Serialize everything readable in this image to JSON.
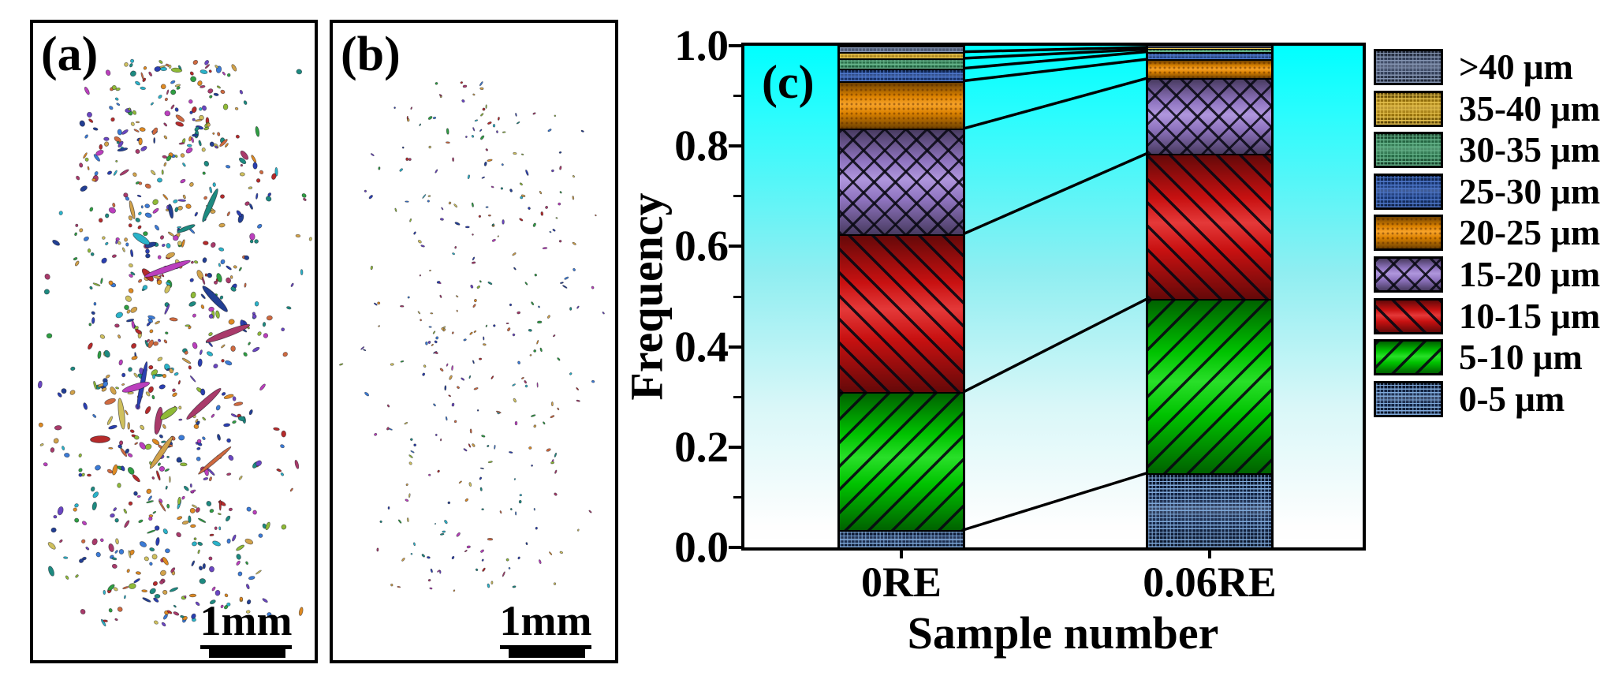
{
  "figure": {
    "panel_a": {
      "label": "(a)",
      "scalebar_label": "1mm"
    },
    "panel_b": {
      "label": "(b)",
      "scalebar_label": "1mm"
    },
    "panel_c": {
      "label": "(c)"
    },
    "particle_palette": [
      "#b52b2b",
      "#2a3fb0",
      "#2f9e42",
      "#2ab3c9",
      "#bb3fbd",
      "#de8a22",
      "#cfc05e",
      "#6a46c2",
      "#1d8a80",
      "#8fba37",
      "#cf6a3f",
      "#3b7bd6",
      "#223f93",
      "#a93a6a",
      "#d1a24a"
    ]
  },
  "chart_data": {
    "type": "bar",
    "subtype": "stacked-vertical",
    "title": "(c)",
    "xlabel": "Sample number",
    "ylabel": "Frequency",
    "ylim": [
      0.0,
      1.0
    ],
    "yticks": [
      0.0,
      0.2,
      0.4,
      0.6,
      0.8,
      1.0
    ],
    "minor_yticks": [
      0.1,
      0.3,
      0.5,
      0.7,
      0.9
    ],
    "grid": false,
    "legend_position": "right",
    "legend_order_top_to_bottom": [
      ">40 μm",
      "35-40 μm",
      "30-35 μm",
      "25-30 μm",
      "20-25 μm",
      "15-20 μm",
      "10-15 μm",
      "5-10 μm",
      "0-5 μm"
    ],
    "background_gradient": [
      "#00ffff",
      "#ffffff"
    ],
    "connector_lines_between_bars": true,
    "categories": [
      "0RE",
      "0.06RE"
    ],
    "series": [
      {
        "name": "0-5 μm",
        "values": [
          0.035,
          0.148
        ],
        "color": "#16294e",
        "pattern": "grid",
        "grid_color": "#7fa9da"
      },
      {
        "name": "5-10 μm",
        "values": [
          0.275,
          0.347
        ],
        "color": "#00d900",
        "pattern": "diag-fwd",
        "grid_color": ""
      },
      {
        "name": "10-15 μm",
        "values": [
          0.315,
          0.29
        ],
        "color": "#df1313",
        "pattern": "diag-back",
        "grid_color": ""
      },
      {
        "name": "15-20 μm",
        "values": [
          0.21,
          0.15
        ],
        "color": "#a082d6",
        "pattern": "cross",
        "grid_color": ""
      },
      {
        "name": "20-25 μm",
        "values": [
          0.095,
          0.038
        ],
        "color": "#f59100",
        "pattern": "dots",
        "grid_color": ""
      },
      {
        "name": "25-30 μm",
        "values": [
          0.025,
          0.015
        ],
        "color": "#1c3e84",
        "pattern": "grid",
        "grid_color": "#4f79cc"
      },
      {
        "name": "30-35 μm",
        "values": [
          0.02,
          0.005
        ],
        "color": "#2e7f53",
        "pattern": "grid",
        "grid_color": "#67b58c"
      },
      {
        "name": "35-40 μm",
        "values": [
          0.013,
          0.004
        ],
        "color": "#b3870f",
        "pattern": "grid",
        "grid_color": "#e6c24f"
      },
      {
        "name": ">40 μm",
        "values": [
          0.012,
          0.003
        ],
        "color": "#3c4a68",
        "pattern": "grid",
        "grid_color": "#8595b2"
      }
    ]
  }
}
